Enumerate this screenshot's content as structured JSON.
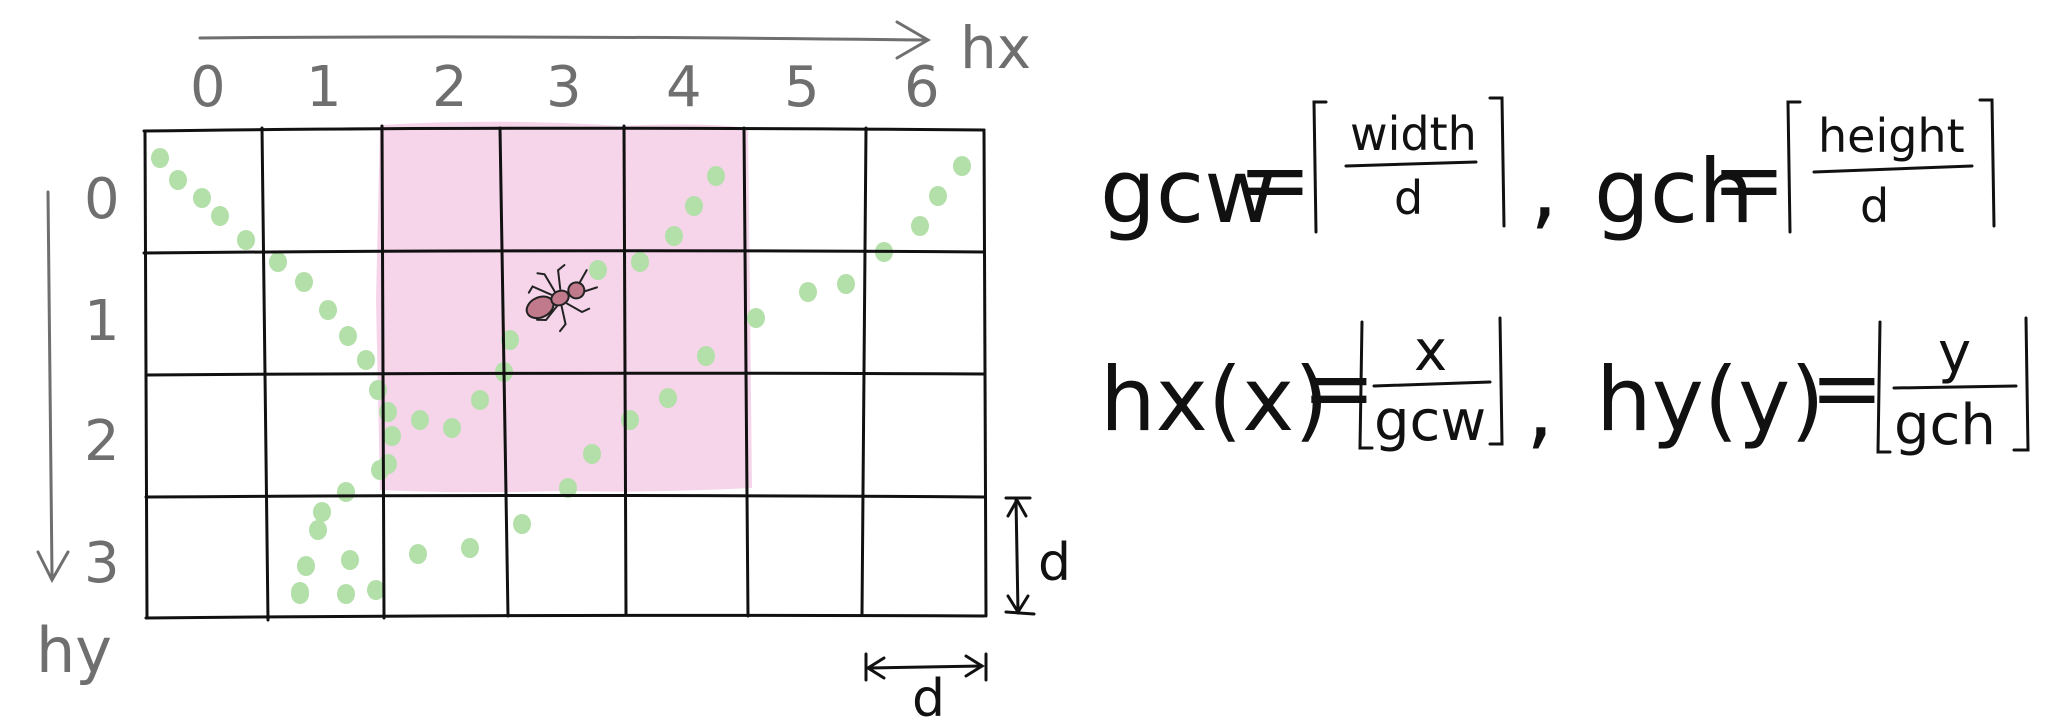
{
  "axes": {
    "x_label": "hx",
    "y_label": "hy",
    "x_ticks": [
      "0",
      "1",
      "2",
      "3",
      "4",
      "5",
      "6"
    ],
    "y_ticks": [
      "0",
      "1",
      "2",
      "3"
    ]
  },
  "grid": {
    "cols": 7,
    "rows": 4,
    "cell_label": "d"
  },
  "colors": {
    "highlight": "#f5cde6",
    "dots": "#b3dfa8",
    "ink": "#111111",
    "axis": "#6f6f6f",
    "ant": "#c07a8c"
  },
  "formulas": {
    "gcw": {
      "lhs": "gcw",
      "eq": "=",
      "num": "width",
      "den": "d"
    },
    "sep1": ",",
    "gch": {
      "lhs": "gch",
      "eq": "=",
      "num": "height",
      "den": "d"
    },
    "hx": {
      "lhs": "hx(x)",
      "eq": "=",
      "num": "x",
      "den": "gcw"
    },
    "sep2": ",",
    "hy": {
      "lhs": "hy(y)",
      "eq": "=",
      "num": "y",
      "den": "gch"
    }
  },
  "icons": {
    "ant": "ant-icon"
  }
}
